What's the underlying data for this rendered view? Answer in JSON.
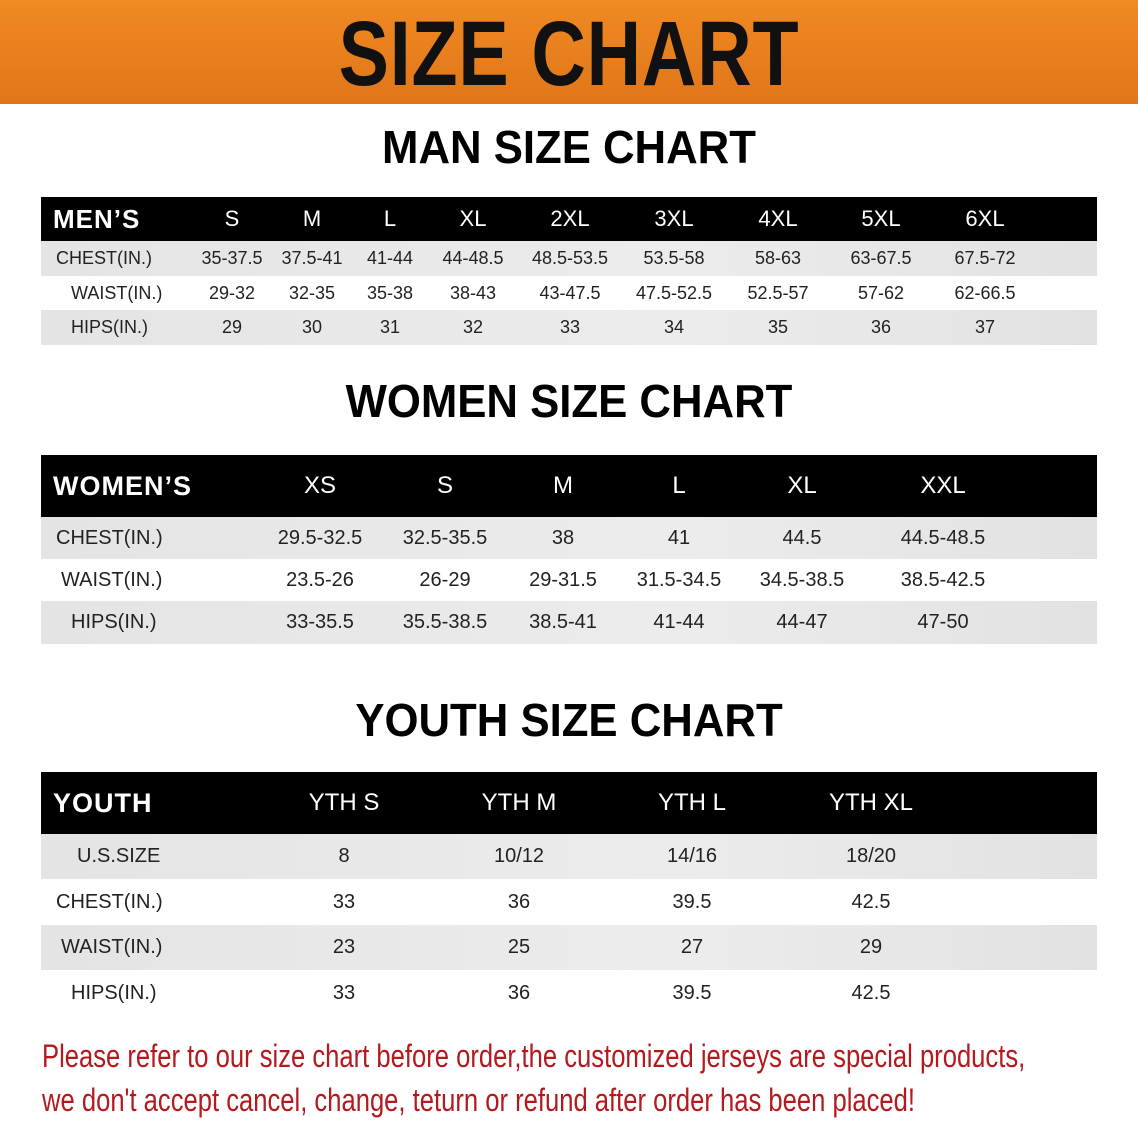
{
  "banner_title": "SIZE CHART",
  "colors": {
    "banner": "#e8801e",
    "header_row": "#000000",
    "stripe": "#e6e6e6",
    "note": "#b3191e"
  },
  "men": {
    "title": "MAN SIZE CHART",
    "header_label": "MEN’S",
    "sizes": [
      "S",
      "M",
      "L",
      "XL",
      "2XL",
      "3XL",
      "4XL",
      "5XL",
      "6XL"
    ],
    "rows": [
      {
        "label": "CHEST(IN.)",
        "values": [
          "35-37.5",
          "37.5-41",
          "41-44",
          "44-48.5",
          "48.5-53.5",
          "53.5-58",
          "58-63",
          "63-67.5",
          "67.5-72"
        ]
      },
      {
        "label": "WAIST(IN.)",
        "values": [
          "29-32",
          "32-35",
          "35-38",
          "38-43",
          "43-47.5",
          "47.5-52.5",
          "52.5-57",
          "57-62",
          "62-66.5"
        ]
      },
      {
        "label": "HIPS(IN.)",
        "values": [
          "29",
          "30",
          "31",
          "32",
          "33",
          "34",
          "35",
          "36",
          "37"
        ]
      }
    ]
  },
  "women": {
    "title": "WOMEN SIZE CHART",
    "header_label": "WOMEN’S",
    "sizes": [
      "XS",
      "S",
      "M",
      "L",
      "XL",
      "XXL"
    ],
    "rows": [
      {
        "label": "CHEST(IN.)",
        "values": [
          "29.5-32.5",
          "32.5-35.5",
          "38",
          "41",
          "44.5",
          "44.5-48.5"
        ]
      },
      {
        "label": "WAIST(IN.)",
        "values": [
          "23.5-26",
          "26-29",
          "29-31.5",
          "31.5-34.5",
          "34.5-38.5",
          "38.5-42.5"
        ]
      },
      {
        "label": "HIPS(IN.)",
        "values": [
          "33-35.5",
          "35.5-38.5",
          "38.5-41",
          "41-44",
          "44-47",
          "47-50"
        ]
      }
    ]
  },
  "youth": {
    "title": "YOUTH SIZE CHART",
    "header_label": "YOUTH",
    "sizes": [
      "YTH S",
      "YTH M",
      "YTH L",
      "YTH XL"
    ],
    "rows": [
      {
        "label": "U.S.SIZE",
        "values": [
          "8",
          "10/12",
          "14/16",
          "18/20"
        ]
      },
      {
        "label": "CHEST(IN.)",
        "values": [
          "33",
          "36",
          "39.5",
          "42.5"
        ]
      },
      {
        "label": "WAIST(IN.)",
        "values": [
          "23",
          "25",
          "27",
          "29"
        ]
      },
      {
        "label": "HIPS(IN.)",
        "values": [
          "33",
          "36",
          "39.5",
          "42.5"
        ]
      }
    ]
  },
  "note": {
    "line1": "Please refer to our size chart before order,the customized jerseys are special products,",
    "line2": "we don't accept cancel, change, teturn or refund after order has been placed!"
  }
}
